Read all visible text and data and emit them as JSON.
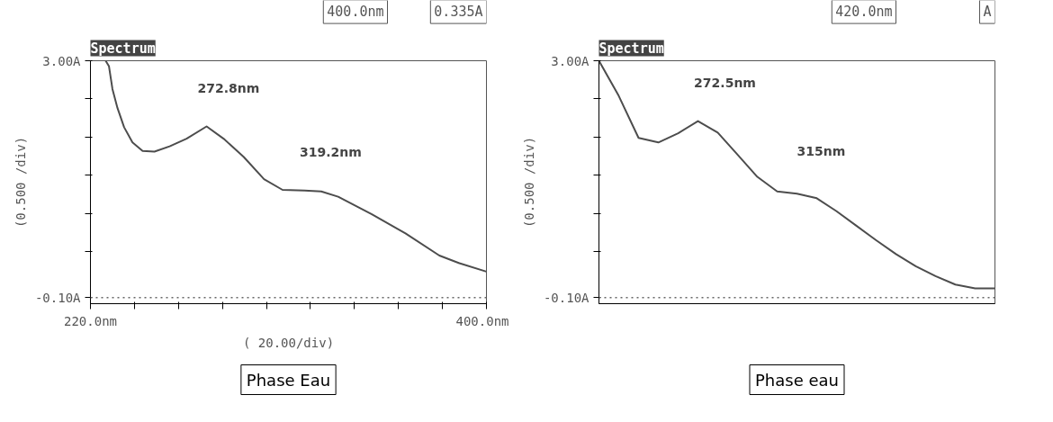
{
  "chart_data": [
    {
      "type": "line",
      "title": "Spectrum",
      "xlabel": "( 20.00/div)",
      "ylabel": "(0.500 /div)",
      "xlim": [
        220,
        400
      ],
      "xticks": [
        {
          "value": 220,
          "label": "220.0nm"
        },
        {
          "value": 240,
          "label": null
        },
        {
          "value": 260,
          "label": null
        },
        {
          "value": 280,
          "label": null
        },
        {
          "value": 300,
          "label": null
        },
        {
          "value": 320,
          "label": null
        },
        {
          "value": 340,
          "label": null
        },
        {
          "value": 360,
          "label": null
        },
        {
          "value": 380,
          "label": null
        },
        {
          "value": 400,
          "label": "400.0nm"
        }
      ],
      "ylim": [
        -0.18,
        3.0
      ],
      "yticks": [
        {
          "value": 3.0,
          "label": "3.00A"
        },
        {
          "value": 2.5,
          "label": null
        },
        {
          "value": 2.0,
          "label": null
        },
        {
          "value": 1.5,
          "label": null
        },
        {
          "value": 1.0,
          "label": null
        },
        {
          "value": 0.5,
          "label": null
        },
        {
          "value": -0.1,
          "label": "-0.10A"
        }
      ],
      "ref_lines": [
        {
          "axis": "y",
          "value": -0.1,
          "label": null,
          "line_style": "dotted",
          "color": "#666666"
        }
      ],
      "annotations": [
        {
          "text": "272.8nm",
          "x": 272.8,
          "y": 2.14
        },
        {
          "text": "319.2nm",
          "x": 319.2,
          "y": 1.3
        },
        "400.0nm",
        "0.335A",
        "Phase Eau"
      ],
      "series": [
        {
          "color": "#4d4d4d",
          "x": [
            226.9,
            228.4,
            230.0,
            232.3,
            235.3,
            239.1,
            243.7,
            249.1,
            256.0,
            263.7,
            272.8,
            280.5,
            289.7,
            298.9,
            307.3,
            317.3,
            324.9,
            332.6,
            347.9,
            363.2,
            378.6,
            387.7,
            400.0
          ],
          "values": [
            3.0,
            2.93,
            2.63,
            2.38,
            2.13,
            1.93,
            1.82,
            1.81,
            1.88,
            1.98,
            2.14,
            1.98,
            1.74,
            1.45,
            1.31,
            1.3,
            1.29,
            1.22,
            0.99,
            0.74,
            0.45,
            0.35,
            0.24
          ]
        }
      ]
    },
    {
      "type": "line",
      "title": "Spectrum",
      "ylabel": "(0.500 /div)",
      "categories": [
        null,
        null,
        null,
        null,
        null,
        null,
        null,
        null,
        null,
        null,
        null,
        null,
        null,
        null,
        null,
        null,
        null,
        null,
        null,
        null,
        null
      ],
      "ylim": [
        -0.18,
        3.0
      ],
      "yticks": [
        {
          "value": 3.0,
          "label": "3.00A"
        },
        {
          "value": 2.5,
          "label": null
        },
        {
          "value": 2.0,
          "label": null
        },
        {
          "value": 1.5,
          "label": null
        },
        {
          "value": 1.0,
          "label": null
        },
        {
          "value": 0.5,
          "label": null
        },
        {
          "value": -0.1,
          "label": "-0.10A"
        }
      ],
      "tick_labels": "y",
      "ref_lines": [
        {
          "axis": "y",
          "value": -0.1,
          "label": null,
          "line_style": "dotted",
          "color": "#666666"
        }
      ],
      "annotations": [
        "272.5nm",
        "315nm",
        "420.0nm",
        "A",
        "Phase eau"
      ],
      "series": [
        {
          "color": "#4d4d4d",
          "values": [
            3.0,
            2.54,
            1.99,
            1.93,
            2.05,
            2.21,
            2.06,
            1.77,
            1.48,
            1.29,
            1.26,
            1.2,
            1.03,
            0.84,
            0.65,
            0.47,
            0.31,
            0.18,
            0.07,
            0.02,
            0.02
          ]
        }
      ]
    }
  ]
}
